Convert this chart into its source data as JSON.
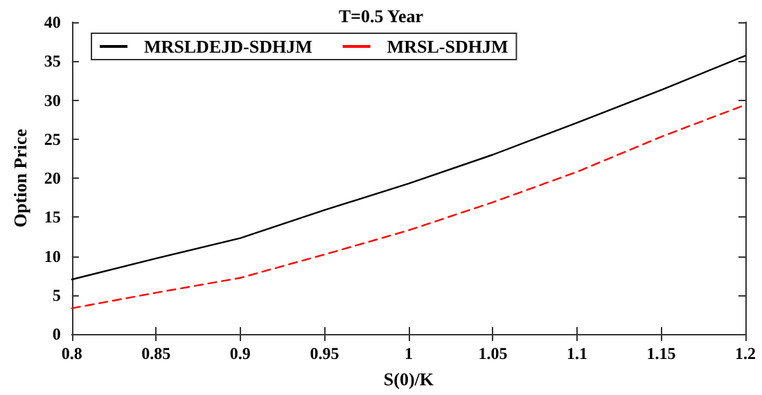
{
  "chart_data": {
    "type": "line",
    "title": "T=0.5 Year",
    "xlabel": "S(0)/K",
    "ylabel": "Option Price",
    "x": [
      0.8,
      0.85,
      0.9,
      0.95,
      1.0,
      1.05,
      1.1,
      1.15,
      1.2
    ],
    "series": [
      {
        "name": "MRSLDEJD-SDHJM",
        "color": "#000000",
        "line_style": "solid",
        "values": [
          7.0,
          9.7,
          12.3,
          15.9,
          19.3,
          23.0,
          27.1,
          31.3,
          35.7
        ]
      },
      {
        "name": "MRSL-SDHJM",
        "color": "#ff0000",
        "line_style": "dashed",
        "values": [
          3.3,
          5.3,
          7.2,
          10.2,
          13.3,
          16.9,
          20.8,
          25.3,
          29.4
        ]
      }
    ],
    "xlim": [
      0.8,
      1.2
    ],
    "xticks": [
      0.8,
      0.85,
      0.9,
      0.95,
      1,
      1.05,
      1.1,
      1.15,
      1.2
    ],
    "ylim": [
      0,
      40
    ],
    "yticks": [
      0,
      5,
      10,
      15,
      20,
      25,
      30,
      35,
      40
    ],
    "grid": false,
    "legend": "top left",
    "marker": "none"
  }
}
